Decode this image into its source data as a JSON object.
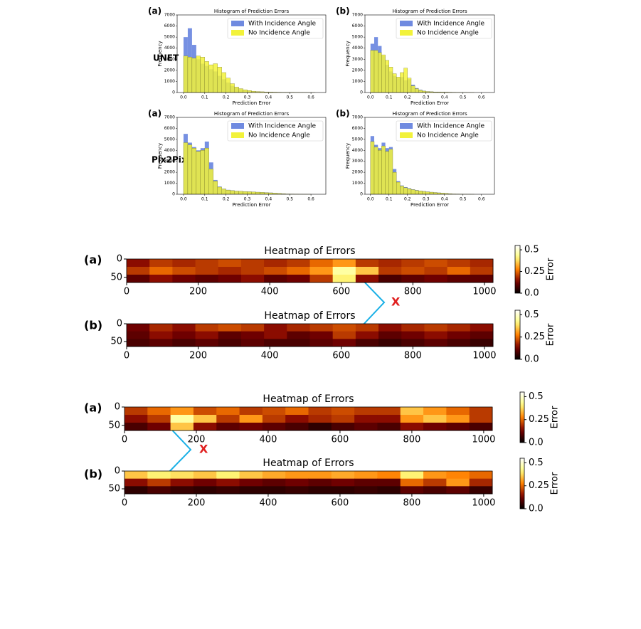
{
  "chart_data": [
    {
      "type": "histogram",
      "panel_label": "(a)",
      "row_label": "UNET",
      "title": "Histogram of Prediction Errors",
      "xlabel": "Prediction Error",
      "ylabel": "Frequency",
      "legend": "upper right",
      "bins": [
        0,
        0.02,
        0.04,
        0.06,
        0.08,
        0.1,
        0.12,
        0.14,
        0.16,
        0.18,
        0.2,
        0.22,
        0.24,
        0.26,
        0.28,
        0.3,
        0.32,
        0.34,
        0.36,
        0.38,
        0.4,
        0.42,
        0.44,
        0.46,
        0.48,
        0.5,
        0.52,
        0.54,
        0.56,
        0.58,
        0.6,
        0.62,
        0.64
      ],
      "series": [
        {
          "name": "With Incidence Angle",
          "color": "#6f8ae0",
          "values": [
            5000,
            5800,
            4300,
            3000,
            2600,
            2400,
            2100,
            1900,
            1500,
            1200,
            900,
            600,
            450,
            300,
            200,
            150,
            100,
            80,
            60,
            50,
            40,
            30,
            25,
            20,
            15,
            10,
            8,
            5,
            3,
            2,
            1,
            0
          ]
        },
        {
          "name": "No Incidence Angle",
          "color": "#f2f23a",
          "values": [
            3300,
            3200,
            3100,
            3300,
            3200,
            2800,
            2500,
            2600,
            2300,
            1800,
            1300,
            800,
            500,
            350,
            250,
            180,
            120,
            90,
            70,
            55,
            45,
            35,
            28,
            22,
            16,
            12,
            9,
            6,
            4,
            2,
            1,
            0
          ]
        }
      ],
      "xlim": [
        -0.03,
        0.67
      ],
      "xticks": [
        {
          "value": 0,
          "label": "0.0"
        },
        0.1,
        0.2,
        0.3,
        0.4,
        0.5,
        0.6
      ],
      "ylim": [
        0,
        7000
      ],
      "yticks": [
        0,
        1000,
        2000,
        3000,
        4000,
        5000,
        6000,
        7000
      ]
    },
    {
      "type": "histogram",
      "panel_label": "(b)",
      "title": "Histogram of Prediction Errors",
      "xlabel": "Prediction Error",
      "ylabel": "Frequency",
      "legend": "upper right",
      "bins": [
        0,
        0.02,
        0.04,
        0.06,
        0.08,
        0.1,
        0.12,
        0.14,
        0.16,
        0.18,
        0.2,
        0.22,
        0.24,
        0.26,
        0.28,
        0.3,
        0.32,
        0.34,
        0.36,
        0.38,
        0.4,
        0.42,
        0.44,
        0.46,
        0.48,
        0.5,
        0.52,
        0.54,
        0.56,
        0.58,
        0.6,
        0.62,
        0.64
      ],
      "series": [
        {
          "name": "With Incidence Angle",
          "color": "#6f8ae0",
          "values": [
            4400,
            5000,
            4200,
            3300,
            2500,
            1900,
            1500,
            1300,
            1400,
            1100,
            1200,
            700,
            400,
            250,
            150,
            100,
            80,
            60,
            50,
            45,
            40,
            35,
            20,
            10,
            6,
            4,
            2,
            1,
            0,
            0,
            0,
            0
          ]
        },
        {
          "name": "No Incidence Angle",
          "color": "#f2f23a",
          "values": [
            3800,
            3800,
            3600,
            3400,
            2900,
            2300,
            1700,
            1400,
            1800,
            2200,
            1300,
            600,
            350,
            200,
            130,
            90,
            70,
            50,
            45,
            40,
            35,
            30,
            18,
            9,
            5,
            3,
            2,
            1,
            0,
            0,
            0,
            0
          ]
        }
      ],
      "xlim": [
        -0.03,
        0.67
      ],
      "xticks": [
        {
          "value": 0,
          "label": "0.0"
        },
        0.1,
        0.2,
        0.3,
        0.4,
        0.5,
        0.6
      ],
      "ylim": [
        0,
        7000
      ],
      "yticks": [
        0,
        1000,
        2000,
        3000,
        4000,
        5000,
        6000,
        7000
      ]
    },
    {
      "type": "histogram",
      "panel_label": "(a)",
      "row_label": "Pix2Pix",
      "title": "Histogram of Prediction Errors",
      "xlabel": "Prediction Error",
      "ylabel": "Frequency",
      "legend": "upper right",
      "bins": [
        0,
        0.02,
        0.04,
        0.06,
        0.08,
        0.1,
        0.12,
        0.14,
        0.16,
        0.18,
        0.2,
        0.22,
        0.24,
        0.26,
        0.28,
        0.3,
        0.32,
        0.34,
        0.36,
        0.38,
        0.4,
        0.42,
        0.44,
        0.46,
        0.48,
        0.5,
        0.52,
        0.54,
        0.56,
        0.58,
        0.6,
        0.62,
        0.64
      ],
      "series": [
        {
          "name": "With Incidence Angle",
          "color": "#6f8ae0",
          "values": [
            5500,
            4700,
            4300,
            4000,
            4200,
            4800,
            2900,
            1300,
            700,
            500,
            400,
            350,
            300,
            280,
            260,
            240,
            220,
            200,
            180,
            160,
            140,
            110,
            80,
            50,
            30,
            20,
            10,
            5,
            2,
            1,
            0,
            0
          ]
        },
        {
          "name": "No Incidence Angle",
          "color": "#f2f23a",
          "values": [
            4700,
            4500,
            4200,
            3900,
            4000,
            4200,
            2300,
            1200,
            650,
            480,
            380,
            330,
            290,
            270,
            250,
            230,
            210,
            190,
            170,
            150,
            130,
            100,
            75,
            45,
            28,
            18,
            9,
            4,
            2,
            1,
            0,
            0
          ]
        }
      ],
      "xlim": [
        -0.03,
        0.67
      ],
      "xticks": [
        {
          "value": 0,
          "label": "0.0"
        },
        0.1,
        0.2,
        0.3,
        0.4,
        0.5,
        0.6
      ],
      "ylim": [
        0,
        7000
      ],
      "yticks": [
        0,
        1000,
        2000,
        3000,
        4000,
        5000,
        6000,
        7000
      ]
    },
    {
      "type": "histogram",
      "panel_label": "(b)",
      "title": "Histogram of Prediction Errors",
      "xlabel": "Prediction Error",
      "ylabel": "Frequency",
      "legend": "upper right",
      "bins": [
        0,
        0.02,
        0.04,
        0.06,
        0.08,
        0.1,
        0.12,
        0.14,
        0.16,
        0.18,
        0.2,
        0.22,
        0.24,
        0.26,
        0.28,
        0.3,
        0.32,
        0.34,
        0.36,
        0.38,
        0.4,
        0.42,
        0.44,
        0.46,
        0.48,
        0.5,
        0.52,
        0.54,
        0.56,
        0.58,
        0.6,
        0.62,
        0.64
      ],
      "series": [
        {
          "name": "With Incidence Angle",
          "color": "#6f8ae0",
          "values": [
            5300,
            4500,
            4200,
            4700,
            4200,
            4300,
            2300,
            1200,
            800,
            650,
            550,
            450,
            380,
            320,
            280,
            240,
            200,
            170,
            140,
            110,
            80,
            50,
            30,
            20,
            10,
            5,
            2,
            1,
            0,
            0,
            0,
            0
          ]
        },
        {
          "name": "No Incidence Angle",
          "color": "#f2f23a",
          "values": [
            4800,
            4300,
            4000,
            4400,
            3900,
            4100,
            2000,
            1100,
            750,
            600,
            500,
            420,
            350,
            300,
            260,
            220,
            190,
            160,
            130,
            100,
            75,
            45,
            28,
            18,
            9,
            4,
            2,
            1,
            0,
            0,
            0,
            0
          ]
        }
      ],
      "xlim": [
        -0.03,
        0.67
      ],
      "xticks": [
        {
          "value": 0,
          "label": "0.0"
        },
        0.1,
        0.2,
        0.3,
        0.4,
        0.5,
        0.6
      ],
      "ylim": [
        0,
        7000
      ],
      "yticks": [
        0,
        1000,
        2000,
        3000,
        4000,
        5000,
        6000,
        7000
      ]
    },
    {
      "type": "heatmap",
      "panel_label": "(a)",
      "title": "Heatmap of Errors",
      "annotation": "X",
      "colorbar_label": "Error",
      "colormap": "afmhot",
      "z": [
        [
          0.15,
          0.2,
          0.18,
          0.2,
          0.22,
          0.2,
          0.18,
          0.2,
          0.25,
          0.3,
          0.2,
          0.18,
          0.2,
          0.22,
          0.2,
          0.18
        ],
        [
          0.2,
          0.25,
          0.22,
          0.2,
          0.18,
          0.2,
          0.22,
          0.25,
          0.3,
          0.45,
          0.35,
          0.2,
          0.22,
          0.2,
          0.25,
          0.2
        ],
        [
          0.1,
          0.15,
          0.12,
          0.1,
          0.12,
          0.15,
          0.1,
          0.12,
          0.2,
          0.4,
          0.15,
          0.08,
          0.1,
          0.12,
          0.1,
          0.1
        ]
      ],
      "xlim": [
        0,
        1024
      ],
      "xticks": [
        0,
        200,
        400,
        600,
        800,
        1000
      ],
      "ylim": [
        64,
        0
      ],
      "yticks": [
        0,
        50
      ],
      "zlim": [
        0,
        0.55
      ],
      "zticks": [
        {
          "value": 0,
          "label": "0.0"
        },
        0.25,
        0.5
      ]
    },
    {
      "type": "heatmap",
      "panel_label": "(b)",
      "title": "Heatmap of Errors",
      "colorbar_label": "Error",
      "colormap": "afmhot",
      "z": [
        [
          0.12,
          0.18,
          0.15,
          0.2,
          0.22,
          0.2,
          0.15,
          0.18,
          0.2,
          0.22,
          0.2,
          0.15,
          0.18,
          0.2,
          0.18,
          0.15
        ],
        [
          0.1,
          0.15,
          0.12,
          0.15,
          0.1,
          0.12,
          0.15,
          0.1,
          0.12,
          0.2,
          0.15,
          0.1,
          0.12,
          0.15,
          0.12,
          0.1
        ],
        [
          0.08,
          0.1,
          0.08,
          0.1,
          0.08,
          0.1,
          0.08,
          0.08,
          0.1,
          0.12,
          0.08,
          0.06,
          0.08,
          0.1,
          0.08,
          0.06
        ]
      ],
      "xlim": [
        0,
        1024
      ],
      "xticks": [
        0,
        200,
        400,
        600,
        800,
        1000
      ],
      "ylim": [
        64,
        0
      ],
      "yticks": [
        0,
        50
      ],
      "zlim": [
        0,
        0.55
      ],
      "zticks": [
        {
          "value": 0,
          "label": "0.0"
        },
        0.25,
        0.5
      ]
    },
    {
      "type": "heatmap",
      "panel_label": "(a)",
      "title": "Heatmap of Errors",
      "annotation": "X",
      "colorbar_label": "Error",
      "colormap": "afmhot",
      "z": [
        [
          0.2,
          0.25,
          0.3,
          0.22,
          0.25,
          0.2,
          0.22,
          0.25,
          0.2,
          0.22,
          0.2,
          0.2,
          0.35,
          0.3,
          0.25,
          0.2
        ],
        [
          0.15,
          0.2,
          0.45,
          0.35,
          0.2,
          0.3,
          0.2,
          0.15,
          0.18,
          0.2,
          0.15,
          0.15,
          0.3,
          0.35,
          0.3,
          0.2
        ],
        [
          0.08,
          0.12,
          0.35,
          0.15,
          0.1,
          0.12,
          0.1,
          0.08,
          0.05,
          0.08,
          0.1,
          0.08,
          0.15,
          0.12,
          0.1,
          0.08
        ]
      ],
      "xlim": [
        0,
        1024
      ],
      "xticks": [
        0,
        200,
        400,
        600,
        800,
        1000
      ],
      "ylim": [
        64,
        0
      ],
      "yticks": [
        0,
        50
      ],
      "zlim": [
        0,
        0.55
      ],
      "zticks": [
        {
          "value": 0,
          "label": "0.0"
        },
        0.25,
        0.5
      ]
    },
    {
      "type": "heatmap",
      "panel_label": "(b)",
      "title": "Heatmap of Errors",
      "colorbar_label": "Error",
      "colormap": "afmhot",
      "z": [
        [
          0.35,
          0.4,
          0.38,
          0.35,
          0.4,
          0.35,
          0.32,
          0.3,
          0.3,
          0.32,
          0.3,
          0.28,
          0.4,
          0.3,
          0.28,
          0.25
        ],
        [
          0.15,
          0.2,
          0.15,
          0.12,
          0.15,
          0.12,
          0.1,
          0.12,
          0.1,
          0.12,
          0.1,
          0.1,
          0.25,
          0.2,
          0.3,
          0.18
        ],
        [
          0.05,
          0.08,
          0.06,
          0.05,
          0.06,
          0.05,
          0.05,
          0.06,
          0.05,
          0.05,
          0.06,
          0.05,
          0.1,
          0.08,
          0.1,
          0.06
        ]
      ],
      "xlim": [
        0,
        1024
      ],
      "xticks": [
        0,
        200,
        400,
        600,
        800,
        1000
      ],
      "ylim": [
        64,
        0
      ],
      "yticks": [
        0,
        50
      ],
      "zlim": [
        0,
        0.55
      ],
      "zticks": [
        {
          "value": 0,
          "label": "0.0"
        },
        0.25,
        0.5
      ]
    }
  ]
}
